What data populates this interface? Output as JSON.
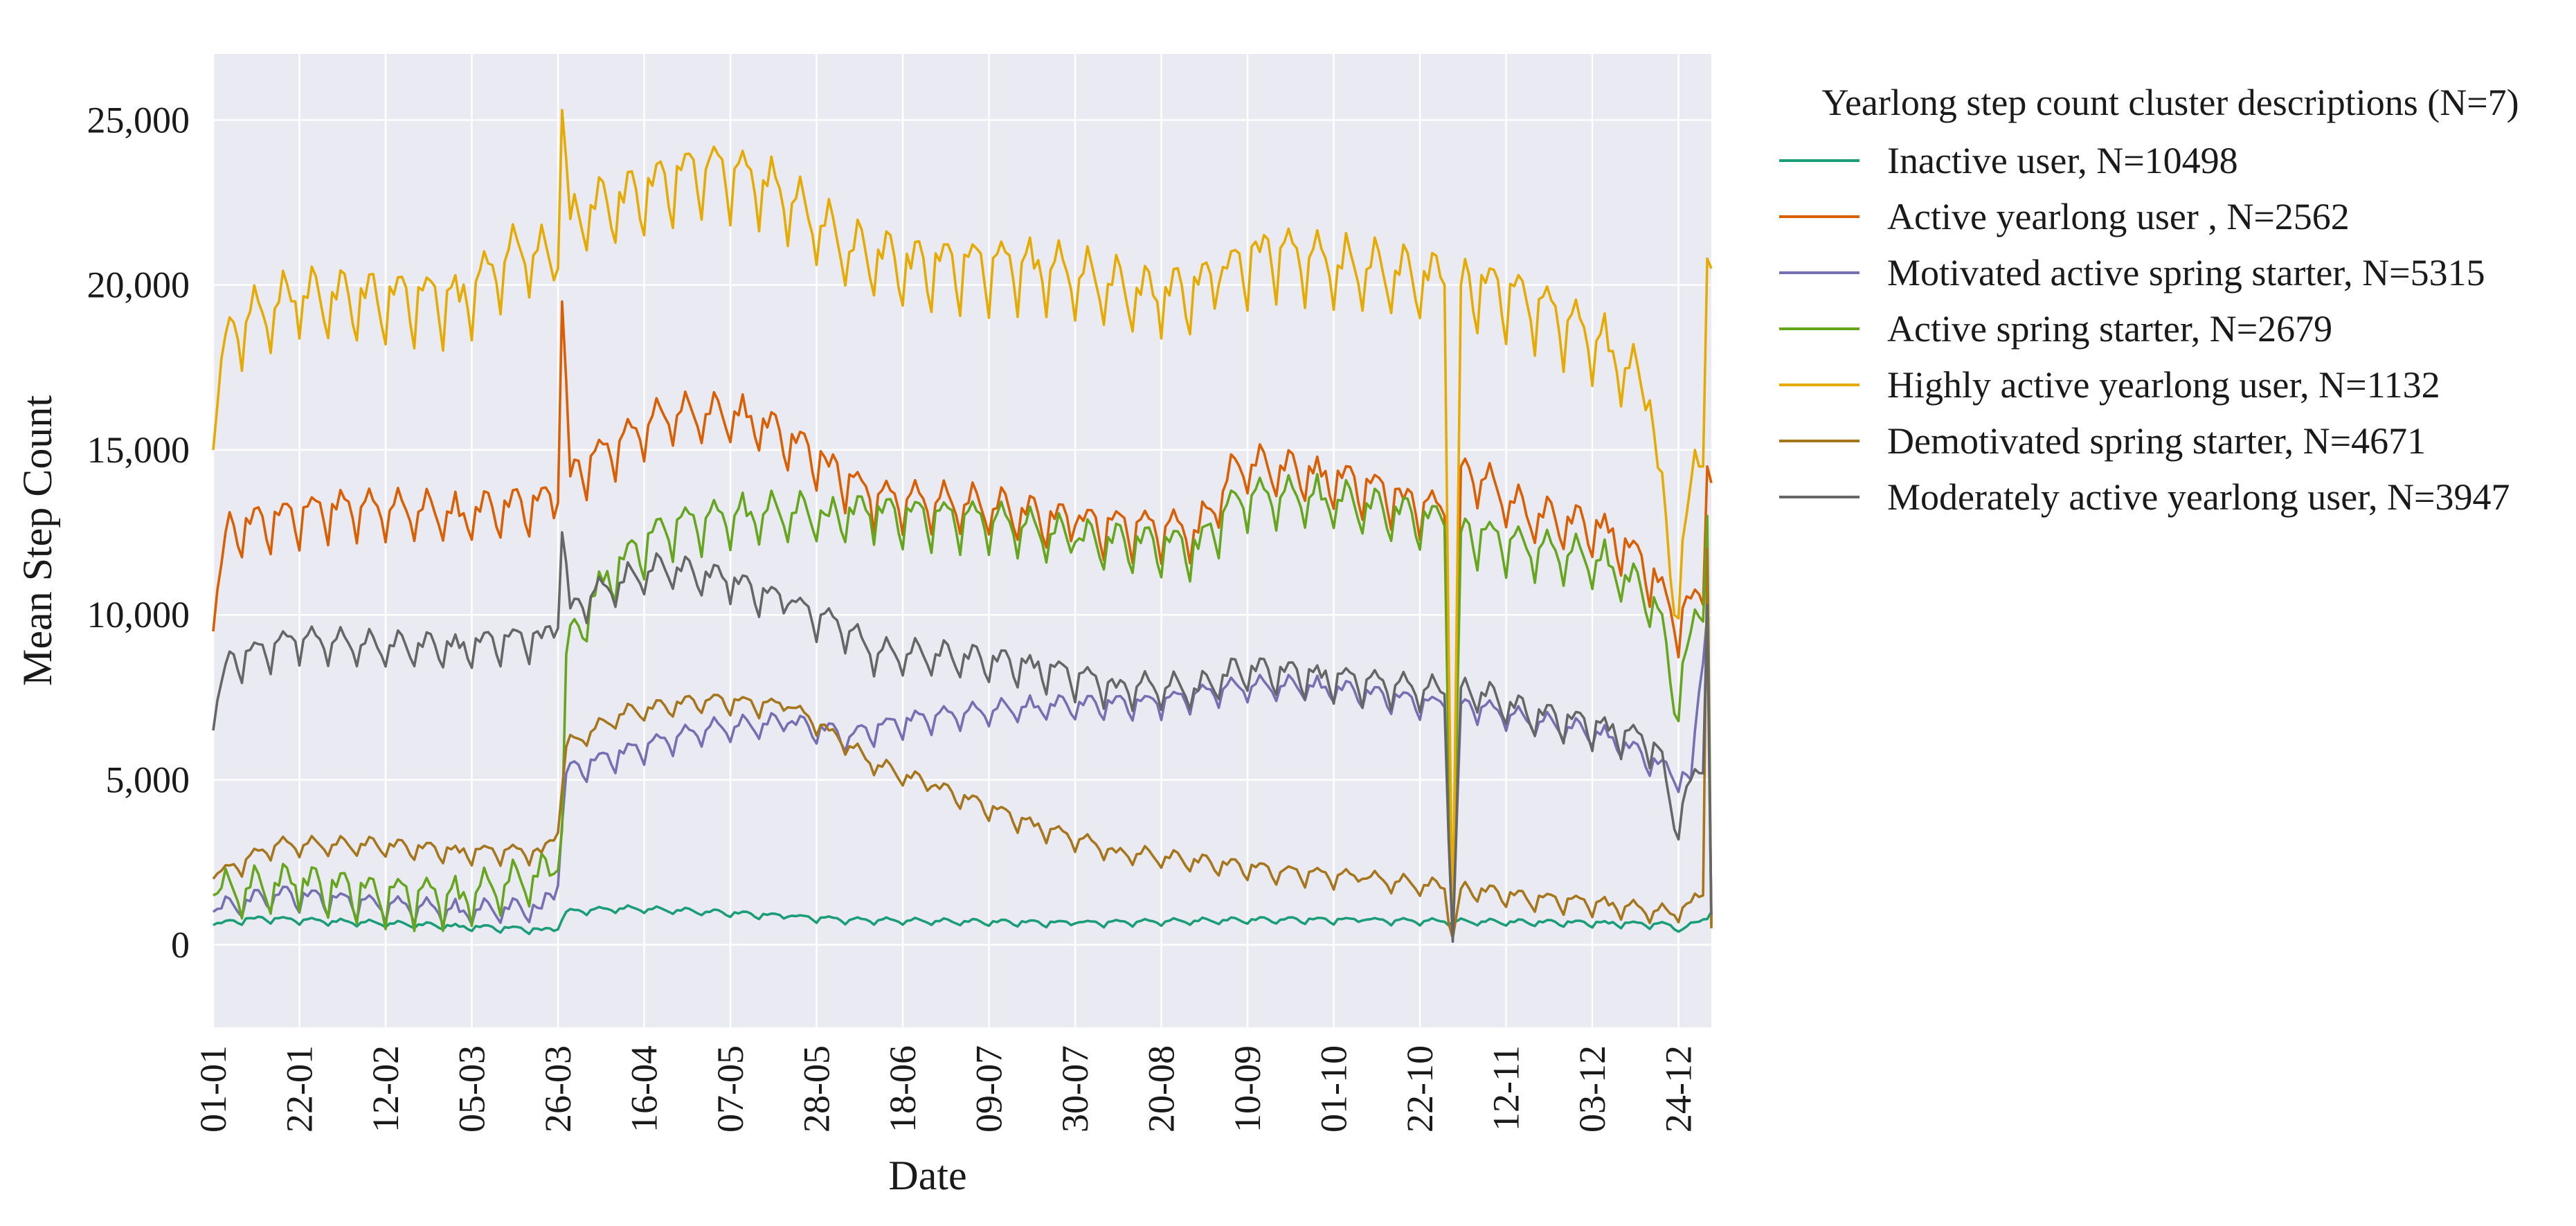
{
  "chart_data": {
    "type": "line",
    "title": "",
    "xlabel": "Date",
    "ylabel": "Mean Step Count",
    "x_ticks": [
      "01-01",
      "22-01",
      "12-02",
      "05-03",
      "26-03",
      "16-04",
      "07-05",
      "28-05",
      "18-06",
      "09-07",
      "30-07",
      "20-08",
      "10-09",
      "01-10",
      "22-10",
      "12-11",
      "03-12",
      "24-12"
    ],
    "x_day_range": [
      0,
      365
    ],
    "ylim": [
      -2500,
      27000
    ],
    "y_ticks": [
      0,
      5000,
      10000,
      15000,
      20000,
      25000
    ],
    "y_tick_labels": [
      "0",
      "5,000",
      "10,000",
      "15,000",
      "20,000",
      "25,000"
    ],
    "grid": true,
    "background": "#eaeaf2",
    "legend": {
      "title": "Yearlong step count cluster descriptions (N=7)",
      "placement": "outside-right-top"
    },
    "series": [
      {
        "name": "Inactive user, N=10498",
        "color": "#1b9e77",
        "keypoints": [
          [
            0,
            600
          ],
          [
            10,
            800
          ],
          [
            30,
            700
          ],
          [
            60,
            550
          ],
          [
            80,
            450
          ],
          [
            84,
            470
          ],
          [
            86,
            1000
          ],
          [
            100,
            1100
          ],
          [
            120,
            1000
          ],
          [
            140,
            850
          ],
          [
            155,
            750
          ],
          [
            180,
            700
          ],
          [
            210,
            650
          ],
          [
            240,
            720
          ],
          [
            260,
            760
          ],
          [
            280,
            740
          ],
          [
            300,
            700
          ],
          [
            320,
            680
          ],
          [
            340,
            650
          ],
          [
            355,
            600
          ],
          [
            357,
            400
          ],
          [
            362,
            700
          ],
          [
            365,
            1000
          ]
        ],
        "amplitude": 120
      },
      {
        "name": "Active yearlong user , N=2562",
        "color": "#d95f02",
        "keypoints": [
          [
            0,
            9500
          ],
          [
            3,
            12500
          ],
          [
            30,
            13200
          ],
          [
            60,
            13000
          ],
          [
            84,
            13400
          ],
          [
            85,
            19500
          ],
          [
            87,
            14200
          ],
          [
            110,
            16000
          ],
          [
            130,
            16000
          ],
          [
            150,
            14500
          ],
          [
            160,
            13500
          ],
          [
            190,
            13200
          ],
          [
            210,
            12700
          ],
          [
            240,
            12500
          ],
          [
            250,
            14500
          ],
          [
            270,
            14200
          ],
          [
            290,
            13500
          ],
          [
            300,
            13000
          ],
          [
            302,
            600
          ],
          [
            304,
            14500
          ],
          [
            320,
            13000
          ],
          [
            340,
            12500
          ],
          [
            352,
            11000
          ],
          [
            356,
            9500
          ],
          [
            360,
            10500
          ],
          [
            363,
            10300
          ],
          [
            364,
            14500
          ],
          [
            365,
            14000
          ]
        ],
        "amplitude": 900,
        "spike_min": {
          "at": 302,
          "value": 600
        }
      },
      {
        "name": "Motivated active spring starter, N=5315",
        "color": "#7570b3",
        "keypoints": [
          [
            0,
            1000
          ],
          [
            15,
            1500
          ],
          [
            40,
            1200
          ],
          [
            60,
            1000
          ],
          [
            80,
            1100
          ],
          [
            84,
            1800
          ],
          [
            86,
            5200
          ],
          [
            100,
            5800
          ],
          [
            120,
            6500
          ],
          [
            140,
            6700
          ],
          [
            155,
            6300
          ],
          [
            170,
            6800
          ],
          [
            200,
            7200
          ],
          [
            230,
            7300
          ],
          [
            250,
            7800
          ],
          [
            270,
            7800
          ],
          [
            300,
            7200
          ],
          [
            302,
            100
          ],
          [
            304,
            7300
          ],
          [
            320,
            6800
          ],
          [
            340,
            6300
          ],
          [
            355,
            5200
          ],
          [
            360,
            5000
          ],
          [
            364,
            10000
          ],
          [
            365,
            600
          ]
        ],
        "amplitude": 450
      },
      {
        "name": "Active spring starter, N=2679",
        "color": "#66a61e",
        "keypoints": [
          [
            0,
            1500
          ],
          [
            20,
            1800
          ],
          [
            40,
            1500
          ],
          [
            60,
            1400
          ],
          [
            82,
            2100
          ],
          [
            85,
            3500
          ],
          [
            86,
            8800
          ],
          [
            95,
            11000
          ],
          [
            110,
            12600
          ],
          [
            130,
            13000
          ],
          [
            150,
            13000
          ],
          [
            160,
            13000
          ],
          [
            190,
            12800
          ],
          [
            210,
            12200
          ],
          [
            240,
            12000
          ],
          [
            250,
            13500
          ],
          [
            270,
            13500
          ],
          [
            300,
            12700
          ],
          [
            302,
            200
          ],
          [
            304,
            12500
          ],
          [
            320,
            12000
          ],
          [
            340,
            11500
          ],
          [
            352,
            10200
          ],
          [
            356,
            7000
          ],
          [
            360,
            9500
          ],
          [
            363,
            9800
          ],
          [
            364,
            13000
          ],
          [
            365,
            600
          ]
        ],
        "amplitude": 900
      },
      {
        "name": "Highly active yearlong user, N=1132",
        "color": "#e6ab02",
        "keypoints": [
          [
            0,
            15000
          ],
          [
            3,
            18500
          ],
          [
            20,
            19500
          ],
          [
            40,
            19500
          ],
          [
            60,
            19500
          ],
          [
            75,
            21000
          ],
          [
            84,
            20500
          ],
          [
            85,
            25300
          ],
          [
            87,
            22000
          ],
          [
            100,
            22500
          ],
          [
            120,
            23500
          ],
          [
            135,
            23000
          ],
          [
            145,
            22000
          ],
          [
            155,
            21000
          ],
          [
            170,
            20500
          ],
          [
            200,
            20500
          ],
          [
            230,
            19500
          ],
          [
            245,
            20000
          ],
          [
            255,
            21000
          ],
          [
            275,
            20500
          ],
          [
            300,
            20000
          ],
          [
            302,
            300
          ],
          [
            304,
            20000
          ],
          [
            320,
            19500
          ],
          [
            340,
            18000
          ],
          [
            350,
            16500
          ],
          [
            356,
            10000
          ],
          [
            360,
            14000
          ],
          [
            363,
            14500
          ],
          [
            364,
            20800
          ],
          [
            365,
            20500
          ]
        ],
        "amplitude": 1300
      },
      {
        "name": "Demotivated spring starter, N=4671",
        "color": "#a6761d",
        "keypoints": [
          [
            0,
            2000
          ],
          [
            15,
            3000
          ],
          [
            40,
            3000
          ],
          [
            60,
            2800
          ],
          [
            80,
            2800
          ],
          [
            84,
            3400
          ],
          [
            86,
            6000
          ],
          [
            100,
            7000
          ],
          [
            120,
            7400
          ],
          [
            140,
            7200
          ],
          [
            150,
            6500
          ],
          [
            160,
            5500
          ],
          [
            175,
            4800
          ],
          [
            200,
            3600
          ],
          [
            220,
            2800
          ],
          [
            240,
            2500
          ],
          [
            260,
            2200
          ],
          [
            280,
            2000
          ],
          [
            300,
            1700
          ],
          [
            302,
            200
          ],
          [
            304,
            1700
          ],
          [
            320,
            1400
          ],
          [
            340,
            1200
          ],
          [
            356,
            900
          ],
          [
            360,
            1300
          ],
          [
            363,
            1500
          ],
          [
            364,
            12000
          ],
          [
            365,
            500
          ]
        ],
        "amplitude": 350
      },
      {
        "name": "Moderately active yearlong user, N=3947",
        "color": "#666666",
        "keypoints": [
          [
            0,
            6500
          ],
          [
            3,
            8500
          ],
          [
            20,
            9200
          ],
          [
            40,
            9000
          ],
          [
            60,
            9000
          ],
          [
            80,
            9300
          ],
          [
            84,
            9600
          ],
          [
            85,
            12500
          ],
          [
            87,
            10200
          ],
          [
            100,
            11000
          ],
          [
            110,
            11400
          ],
          [
            125,
            11000
          ],
          [
            140,
            10300
          ],
          [
            155,
            9500
          ],
          [
            160,
            8800
          ],
          [
            180,
            8700
          ],
          [
            200,
            8400
          ],
          [
            220,
            7800
          ],
          [
            240,
            7700
          ],
          [
            250,
            8300
          ],
          [
            270,
            8100
          ],
          [
            300,
            7600
          ],
          [
            302,
            100
          ],
          [
            304,
            7800
          ],
          [
            320,
            7000
          ],
          [
            340,
            6500
          ],
          [
            352,
            6000
          ],
          [
            356,
            3500
          ],
          [
            360,
            5000
          ],
          [
            363,
            5200
          ],
          [
            364,
            10300
          ],
          [
            365,
            900
          ]
        ],
        "amplitude": 650
      }
    ]
  }
}
